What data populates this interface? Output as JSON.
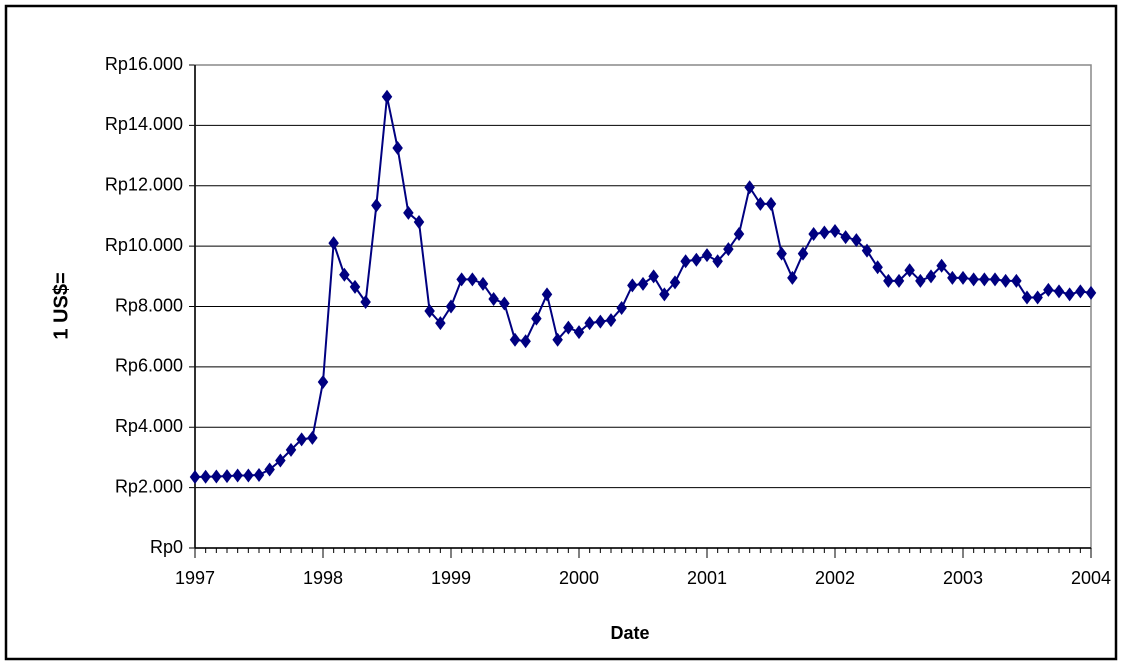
{
  "chart_data": {
    "type": "line",
    "x_label": "Date",
    "y_label": "1 US$=",
    "x": [
      1997,
      1997.083,
      1997.167,
      1997.25,
      1997.333,
      1997.417,
      1997.5,
      1997.583,
      1997.667,
      1997.75,
      1997.833,
      1997.917,
      1998,
      1998.083,
      1998.167,
      1998.25,
      1998.333,
      1998.417,
      1998.5,
      1998.583,
      1998.667,
      1998.75,
      1998.833,
      1998.917,
      1999,
      1999.083,
      1999.167,
      1999.25,
      1999.333,
      1999.417,
      1999.5,
      1999.583,
      1999.667,
      1999.75,
      1999.833,
      1999.917,
      2000,
      2000.083,
      2000.167,
      2000.25,
      2000.333,
      2000.417,
      2000.5,
      2000.583,
      2000.667,
      2000.75,
      2000.833,
      2000.917,
      2001,
      2001.083,
      2001.167,
      2001.25,
      2001.333,
      2001.417,
      2001.5,
      2001.583,
      2001.667,
      2001.75,
      2001.833,
      2001.917,
      2002,
      2002.083,
      2002.167,
      2002.25,
      2002.333,
      2002.417,
      2002.5,
      2002.583,
      2002.667,
      2002.75,
      2002.833,
      2002.917,
      2003,
      2003.083,
      2003.167,
      2003.25,
      2003.333,
      2003.417,
      2003.5,
      2003.583,
      2003.667,
      2003.75,
      2003.833,
      2003.917,
      2004
    ],
    "series": [
      {
        "name": "1 US$=",
        "color": "#000080",
        "marker": "diamond",
        "values": [
          2350,
          2360,
          2370,
          2380,
          2400,
          2400,
          2420,
          2600,
          2900,
          3250,
          3600,
          3650,
          5500,
          10100,
          9050,
          8650,
          8150,
          11350,
          14950,
          13250,
          11100,
          10800,
          7850,
          7450,
          8000,
          8900,
          8900,
          8750,
          8250,
          8100,
          6900,
          6850,
          7600,
          8400,
          6900,
          7300,
          7150,
          7450,
          7500,
          7550,
          7950,
          8700,
          8750,
          9000,
          8400,
          8800,
          9500,
          9550,
          9700,
          9500,
          9900,
          10400,
          11950,
          11400,
          11400,
          9750,
          8950,
          9750,
          10400,
          10450,
          10500,
          10300,
          10200,
          9850,
          9300,
          8850,
          8850,
          9200,
          8850,
          9000,
          9350,
          8950,
          8950,
          8900,
          8900,
          8900,
          8850,
          8850,
          8300,
          8300,
          8550,
          8500,
          8400,
          8500,
          8450
        ]
      }
    ],
    "xlim": [
      1997,
      2004
    ],
    "xticks": [
      1997,
      1998,
      1999,
      2000,
      2001,
      2002,
      2003,
      2004
    ],
    "ylim": [
      0,
      16000
    ],
    "yticks": [
      {
        "value": 0,
        "label": "Rp0"
      },
      {
        "value": 2000,
        "label": "Rp2.000"
      },
      {
        "value": 4000,
        "label": "Rp4.000"
      },
      {
        "value": 6000,
        "label": "Rp6.000"
      },
      {
        "value": 8000,
        "label": "Rp8.000"
      },
      {
        "value": 10000,
        "label": "Rp10.000"
      },
      {
        "value": 12000,
        "label": "Rp12.000"
      },
      {
        "value": 14000,
        "label": "Rp14.000"
      },
      {
        "value": 16000,
        "label": "Rp16.000"
      }
    ],
    "grid": true
  }
}
